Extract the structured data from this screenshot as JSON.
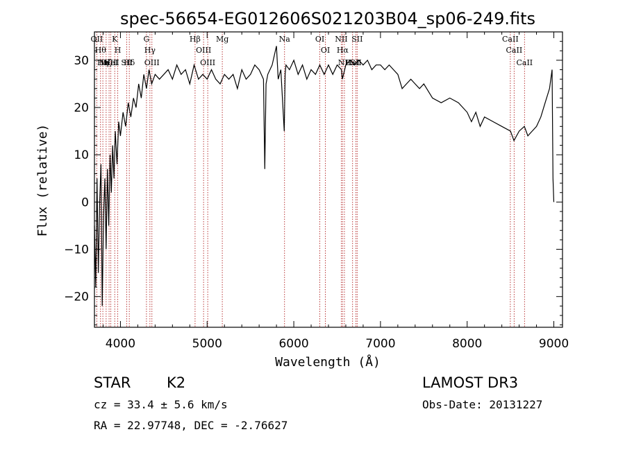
{
  "chart_data": {
    "type": "line",
    "title": "spec-56654-EG012606S021203B04_sp06-249.fits",
    "xlabel": "Wavelength (Å)",
    "ylabel": "Flux (relative)",
    "xlim": [
      3700,
      9100
    ],
    "ylim": [
      -26.5,
      36
    ],
    "xticks": [
      4000,
      5000,
      6000,
      7000,
      8000,
      9000
    ],
    "yticks": [
      -20,
      -10,
      0,
      10,
      20,
      30
    ],
    "x_minor_step": 200,
    "y_minor_step": 2,
    "colors": {
      "spectrum": "#000000",
      "lines": "#b22222",
      "axes": "#000000"
    },
    "series": [
      {
        "name": "flux",
        "x": [
          3700,
          3715,
          3730,
          3745,
          3760,
          3775,
          3790,
          3805,
          3820,
          3835,
          3850,
          3865,
          3880,
          3895,
          3910,
          3925,
          3940,
          3960,
          3980,
          4000,
          4030,
          4060,
          4090,
          4120,
          4150,
          4180,
          4210,
          4240,
          4270,
          4300,
          4330,
          4360,
          4400,
          4450,
          4500,
          4550,
          4600,
          4650,
          4700,
          4750,
          4800,
          4850,
          4900,
          4950,
          5000,
          5050,
          5100,
          5150,
          5200,
          5250,
          5300,
          5350,
          5400,
          5450,
          5500,
          5550,
          5600,
          5650,
          5665,
          5680,
          5700,
          5750,
          5800,
          5820,
          5850,
          5890,
          5900,
          5910,
          5950,
          6000,
          6050,
          6100,
          6150,
          6200,
          6250,
          6300,
          6350,
          6400,
          6450,
          6500,
          6550,
          6560,
          6600,
          6650,
          6700,
          6750,
          6800,
          6850,
          6900,
          6950,
          7000,
          7050,
          7100,
          7150,
          7200,
          7250,
          7300,
          7350,
          7400,
          7450,
          7500,
          7600,
          7700,
          7800,
          7900,
          8000,
          8050,
          8100,
          8150,
          8200,
          8300,
          8400,
          8500,
          8540,
          8600,
          8660,
          8700,
          8750,
          8800,
          8850,
          8900,
          8950,
          8980,
          8990,
          9000
        ],
        "y": [
          -5,
          -18,
          5,
          -15,
          0,
          8,
          -22,
          -3,
          5,
          -10,
          7,
          -5,
          10,
          2,
          12,
          5,
          15,
          8,
          17,
          14,
          19,
          16,
          21,
          18,
          22,
          20,
          25,
          22,
          27,
          24,
          28,
          25,
          27,
          26,
          27,
          28,
          26,
          29,
          27,
          28,
          25,
          29,
          26,
          27,
          26,
          28,
          26,
          25,
          27,
          26,
          27,
          24,
          28,
          26,
          27,
          29,
          28,
          26,
          7,
          25,
          27,
          29,
          33,
          26,
          28,
          15,
          27,
          29,
          28,
          30,
          27,
          29,
          26,
          28,
          27,
          29,
          27,
          29,
          27,
          29,
          28,
          26,
          29,
          30,
          29,
          30,
          29,
          30,
          28,
          29,
          29,
          28,
          29,
          28,
          27,
          24,
          25,
          26,
          25,
          24,
          25,
          22,
          21,
          22,
          21,
          19,
          17,
          19,
          16,
          18,
          17,
          16,
          15,
          13,
          15,
          16,
          14,
          15,
          16,
          18,
          21,
          24,
          28,
          5,
          0
        ]
      }
    ],
    "emission_lines": [
      {
        "wave": 3727,
        "label": "OII"
      },
      {
        "wave": 3770,
        "label": "Hθ"
      },
      {
        "wave": 3797,
        "label": "Hη"
      },
      {
        "wave": 3835,
        "label": "Hζ"
      },
      {
        "wave": 3869,
        "label": "NeIII"
      },
      {
        "wave": 3889,
        "label": "HeI"
      },
      {
        "wave": 3934,
        "label": "K"
      },
      {
        "wave": 3969,
        "label": "H"
      },
      {
        "wave": 4072,
        "label": "SII"
      },
      {
        "wave": 4102,
        "label": "Hδ"
      },
      {
        "wave": 4300,
        "label": "G"
      },
      {
        "wave": 4340,
        "label": "Hγ"
      },
      {
        "wave": 4363,
        "label": "OIII"
      },
      {
        "wave": 4861,
        "label": "Hβ"
      },
      {
        "wave": 4959,
        "label": "OIII"
      },
      {
        "wave": 5007,
        "label": "OIII"
      },
      {
        "wave": 5175,
        "label": "Mg"
      },
      {
        "wave": 5893,
        "label": "Na"
      },
      {
        "wave": 6300,
        "label": "OI"
      },
      {
        "wave": 6364,
        "label": "OI"
      },
      {
        "wave": 6548,
        "label": "NII"
      },
      {
        "wave": 6563,
        "label": "Hα"
      },
      {
        "wave": 6584,
        "label": "NII"
      },
      {
        "wave": 6678,
        "label": "HeI"
      },
      {
        "wave": 6717,
        "label": "SII"
      },
      {
        "wave": 6731,
        "label": "SII"
      },
      {
        "wave": 8498,
        "label": "CaII"
      },
      {
        "wave": 8542,
        "label": "CaII"
      },
      {
        "wave": 8662,
        "label": "CaII"
      }
    ]
  },
  "info": {
    "class_label": "STAR",
    "subclass_label": "K2",
    "survey": "LAMOST DR3",
    "cz": "cz = 33.4 ± 5.6 km/s",
    "obs_date": "Obs-Date: 20131227",
    "coords": "RA =  22.97748, DEC =  -2.76627"
  }
}
